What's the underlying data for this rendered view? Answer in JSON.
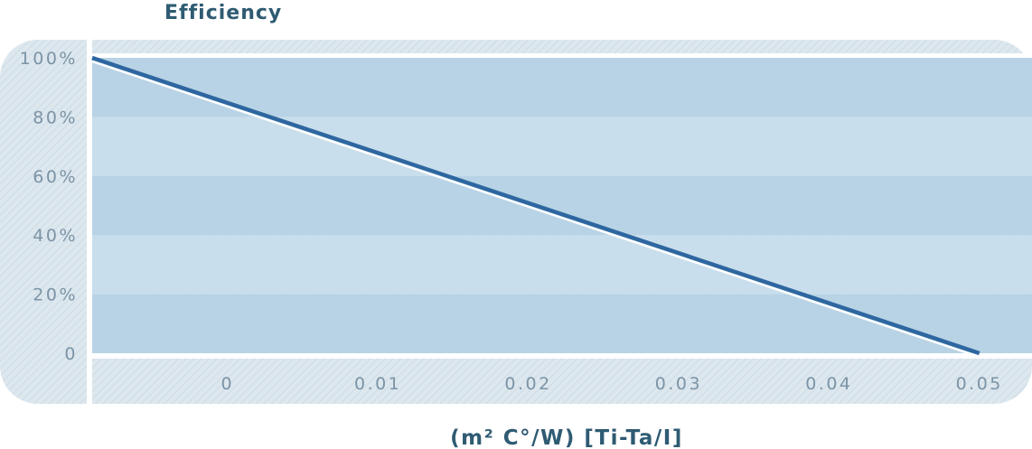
{
  "chart_data": {
    "type": "line",
    "title": "",
    "ylabel": "Efficiency",
    "xlabel": "(m²  C°/W) [Ti-Ta/I]",
    "x_ticks": [
      0,
      0.01,
      0.02,
      0.03,
      0.04,
      0.05
    ],
    "x_tick_labels": [
      "0",
      "0.01",
      "0.02",
      "0.03",
      "0.04",
      "0.05"
    ],
    "y_ticks": [
      0,
      20,
      40,
      60,
      80,
      100
    ],
    "y_tick_labels": [
      "0",
      "20%",
      "40%",
      "60%",
      "80%",
      "100%"
    ],
    "xlim": [
      -0.009,
      0.0535
    ],
    "ylim": [
      0,
      100
    ],
    "series": [
      {
        "x": [
          -0.009,
          0.05
        ],
        "y": [
          100,
          0
        ]
      }
    ],
    "grid": "alternating horizontal bands",
    "legend": "none",
    "colors": {
      "band_dark": "#b8d3e5",
      "band_light": "#c8deec",
      "frame": "#dde7ee",
      "hatch": "#cfdde8",
      "line": "#2e67a0",
      "tick_text": "#7b94a6",
      "label_text": "#2f5b73"
    }
  }
}
